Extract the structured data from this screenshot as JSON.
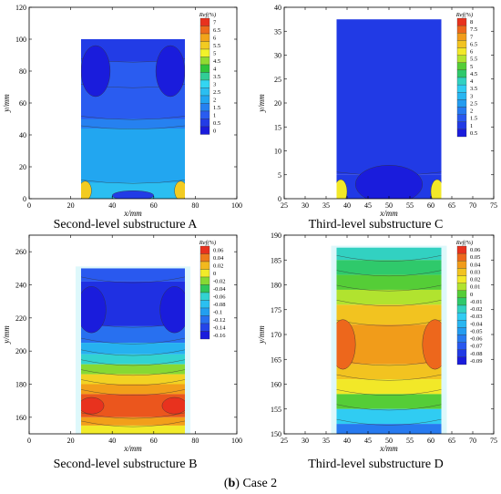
{
  "case_caption": {
    "prefix": "(",
    "letter": "b",
    "suffix": ") Case 2"
  },
  "colors": {
    "deep_blue": "#1a1cdc",
    "blue": "#2a5cf0",
    "light_blue": "#22a6f0",
    "cyan": "#33d6f2",
    "green": "#2ec43a",
    "yellow": "#f2f22a",
    "orange": "#f2a41a",
    "red": "#e8321e"
  },
  "chart_data": [
    {
      "id": "a",
      "type": "heatmap",
      "caption": "Second-level substructure A",
      "xlabel": "x/mm",
      "ylabel": "y/mm",
      "xlim": [
        0,
        100
      ],
      "ylim": [
        0,
        120
      ],
      "xticks": [
        0,
        20,
        40,
        60,
        80,
        100
      ],
      "yticks": [
        0,
        20,
        40,
        60,
        80,
        100,
        120
      ],
      "legend_title": "Ref(%)",
      "legend_levels": [
        "7",
        "6.5",
        "6",
        "5.5",
        "5",
        "4.5",
        "4",
        "3.5",
        "3",
        "2.5",
        "2",
        "1.5",
        "1",
        "0.5",
        "0"
      ],
      "domain": {
        "x": [
          25,
          75
        ],
        "y": [
          0,
          100
        ]
      },
      "bands": [
        {
          "y": [
            86,
            100
          ],
          "value": 0.5
        },
        {
          "y": [
            70,
            86
          ],
          "value": 1.0
        },
        {
          "y": [
            50,
            70
          ],
          "value": 1.0
        },
        {
          "y": [
            44,
            50
          ],
          "value": 1.5
        },
        {
          "y": [
            10,
            44
          ],
          "value": 2.0
        },
        {
          "y": [
            0,
            10
          ],
          "value": 2.5
        }
      ],
      "spots": [
        {
          "x": 68,
          "y": 80,
          "rx": 7,
          "ry": 16,
          "value": 0
        },
        {
          "x": 32,
          "y": 80,
          "rx": 7,
          "ry": 16,
          "value": 0
        },
        {
          "x": 27,
          "y": 5,
          "rx": 3,
          "ry": 6,
          "value": 5.5
        },
        {
          "x": 73,
          "y": 5,
          "rx": 3,
          "ry": 6,
          "value": 5.5
        },
        {
          "x": 50,
          "y": 2,
          "rx": 10,
          "ry": 3,
          "value": 0.5
        }
      ]
    },
    {
      "id": "c",
      "type": "heatmap",
      "caption": "Third-level substructure C",
      "xlabel": "x/mm",
      "ylabel": "y/mm",
      "xlim": [
        25,
        75
      ],
      "ylim": [
        0,
        40
      ],
      "xticks": [
        25,
        30,
        35,
        40,
        45,
        50,
        55,
        60,
        65,
        70,
        75
      ],
      "yticks": [
        0,
        5,
        10,
        15,
        20,
        25,
        30,
        35,
        40
      ],
      "legend_title": "Ref(%)",
      "legend_levels": [
        "8",
        "7.5",
        "7",
        "6.5",
        "6",
        "5.5",
        "5",
        "4.5",
        "4",
        "3.5",
        "3",
        "2.5",
        "2",
        "1.5",
        "1",
        "0.5"
      ],
      "domain": {
        "x": [
          37.5,
          62.5
        ],
        "y": [
          0,
          37.5
        ]
      },
      "bands": [
        {
          "y": [
            5,
            37.5
          ],
          "value": 1.0
        },
        {
          "y": [
            0,
            5
          ],
          "value": 1.0
        }
      ],
      "spots": [
        {
          "x": 50,
          "y": 3,
          "rx": 8,
          "ry": 4,
          "value": 0.5
        },
        {
          "x": 38.5,
          "y": 1.5,
          "rx": 1.5,
          "ry": 2.5,
          "value": 6.0
        },
        {
          "x": 61.5,
          "y": 1.5,
          "rx": 1.5,
          "ry": 2.5,
          "value": 6.0
        }
      ]
    },
    {
      "id": "b",
      "type": "heatmap",
      "caption": "Second-level substructure B",
      "xlabel": "x/mm",
      "ylabel": "y/mm",
      "xlim": [
        0,
        100
      ],
      "ylim": [
        150,
        270
      ],
      "xticks": [
        0,
        20,
        40,
        60,
        80,
        100
      ],
      "yticks": [
        160,
        180,
        200,
        220,
        240,
        260
      ],
      "legend_title": "Ref(%)",
      "legend_levels": [
        "0.06",
        "0.04",
        "0.02",
        "0",
        "-0.02",
        "-0.04",
        "-0.06",
        "-0.08",
        "-0.1",
        "-0.12",
        "-0.14",
        "-0.16"
      ],
      "domain": {
        "x": [
          25,
          75
        ],
        "y": [
          150,
          250
        ]
      },
      "bands": [
        {
          "y": [
            242,
            250
          ],
          "value": -0.13
        },
        {
          "y": [
            215,
            242
          ],
          "value": -0.15
        },
        {
          "y": [
            205,
            215
          ],
          "value": -0.12
        },
        {
          "y": [
            198,
            205
          ],
          "value": -0.09
        },
        {
          "y": [
            192,
            198
          ],
          "value": -0.06
        },
        {
          "y": [
            186,
            192
          ],
          "value": -0.02
        },
        {
          "y": [
            180,
            186
          ],
          "value": 0.01
        },
        {
          "y": [
            174,
            180
          ],
          "value": 0.03
        },
        {
          "y": [
            160,
            174
          ],
          "value": 0.05
        },
        {
          "y": [
            155,
            160
          ],
          "value": 0.03
        },
        {
          "y": [
            150,
            155
          ],
          "value": 0.0
        }
      ],
      "spots": [
        {
          "x": 30,
          "y": 225,
          "rx": 7,
          "ry": 14,
          "value": -0.16
        },
        {
          "x": 70,
          "y": 225,
          "rx": 7,
          "ry": 14,
          "value": -0.16
        },
        {
          "x": 30,
          "y": 167,
          "rx": 6,
          "ry": 5,
          "value": 0.06
        },
        {
          "x": 70,
          "y": 167,
          "rx": 6,
          "ry": 5,
          "value": 0.06
        }
      ]
    },
    {
      "id": "d",
      "type": "heatmap",
      "caption": "Third-level substructure D",
      "xlabel": "x/mm",
      "ylabel": "y/mm",
      "xlim": [
        25,
        75
      ],
      "ylim": [
        150,
        190
      ],
      "xticks": [
        25,
        30,
        35,
        40,
        45,
        50,
        55,
        60,
        65,
        70,
        75
      ],
      "yticks": [
        150,
        155,
        160,
        165,
        170,
        175,
        180,
        185,
        190
      ],
      "legend_title": "Ref(%)",
      "legend_levels": [
        "0.06",
        "0.05",
        "0.04",
        "0.03",
        "0.02",
        "0.01",
        "0",
        "-0.01",
        "-0.02",
        "-0.03",
        "-0.04",
        "-0.05",
        "-0.06",
        "-0.07",
        "-0.08",
        "-0.09"
      ],
      "domain": {
        "x": [
          37.5,
          62.5
        ],
        "y": [
          150,
          187.5
        ]
      },
      "bands": [
        {
          "y": [
            185,
            187.5
          ],
          "value": -0.02
        },
        {
          "y": [
            182,
            185
          ],
          "value": -0.01
        },
        {
          "y": [
            179,
            182
          ],
          "value": 0.0
        },
        {
          "y": [
            176,
            179
          ],
          "value": 0.01
        },
        {
          "y": [
            172,
            176
          ],
          "value": 0.03
        },
        {
          "y": [
            164,
            172
          ],
          "value": 0.04
        },
        {
          "y": [
            161,
            164
          ],
          "value": 0.03
        },
        {
          "y": [
            158,
            161
          ],
          "value": 0.02
        },
        {
          "y": [
            155,
            158
          ],
          "value": 0.0
        },
        {
          "y": [
            152,
            155
          ],
          "value": -0.03
        },
        {
          "y": [
            150,
            152
          ],
          "value": -0.06
        }
      ],
      "spots": [
        {
          "x": 39,
          "y": 168,
          "rx": 3,
          "ry": 5,
          "value": 0.05
        },
        {
          "x": 61,
          "y": 168,
          "rx": 3,
          "ry": 5,
          "value": 0.05
        }
      ]
    }
  ]
}
